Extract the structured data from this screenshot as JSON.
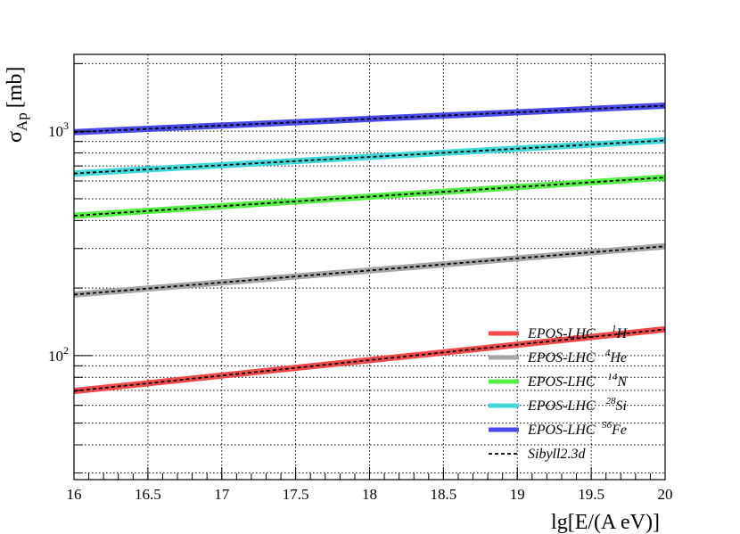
{
  "chart_data": {
    "type": "line",
    "xlabel": "lg[E/(A eV)]",
    "ylabel": "σ_Ap [mb]",
    "ylabel_main": "σ",
    "ylabel_sub": "Ap",
    "ylabel_unit": "[mb]",
    "xlim": [
      16,
      20
    ],
    "ylim": [
      28,
      2200
    ],
    "yscale": "log",
    "grid": true,
    "legend_position": "bottom-right",
    "x_ticks": [
      "16",
      "16.5",
      "17",
      "17.5",
      "18",
      "18.5",
      "19",
      "19.5",
      "20"
    ],
    "y_ticks": [
      {
        "value": 100,
        "base": "10",
        "exp": "2"
      },
      {
        "value": 1000,
        "base": "10",
        "exp": "3"
      }
    ],
    "x": [
      16,
      20
    ],
    "series": [
      {
        "model": "EPOS-LHC",
        "mass": "1",
        "element": "H",
        "color": "#f04a4a",
        "values": [
          69.5,
          131
        ]
      },
      {
        "model": "EPOS-LHC",
        "mass": "4",
        "element": "He",
        "color": "#a6a6a6",
        "values": [
          187,
          307
        ]
      },
      {
        "model": "EPOS-LHC",
        "mass": "14",
        "element": "N",
        "color": "#55ee44",
        "values": [
          420,
          622
        ]
      },
      {
        "model": "EPOS-LHC",
        "mass": "28",
        "element": "Si",
        "color": "#40d8d8",
        "values": [
          648,
          910
        ]
      },
      {
        "model": "EPOS-LHC",
        "mass": "56",
        "element": "Fe",
        "color": "#4a4ae8",
        "values": [
          990,
          1300
        ]
      }
    ],
    "reference": {
      "name": "Sibyll2.3d",
      "style": "dashed",
      "color": "#000000"
    }
  }
}
